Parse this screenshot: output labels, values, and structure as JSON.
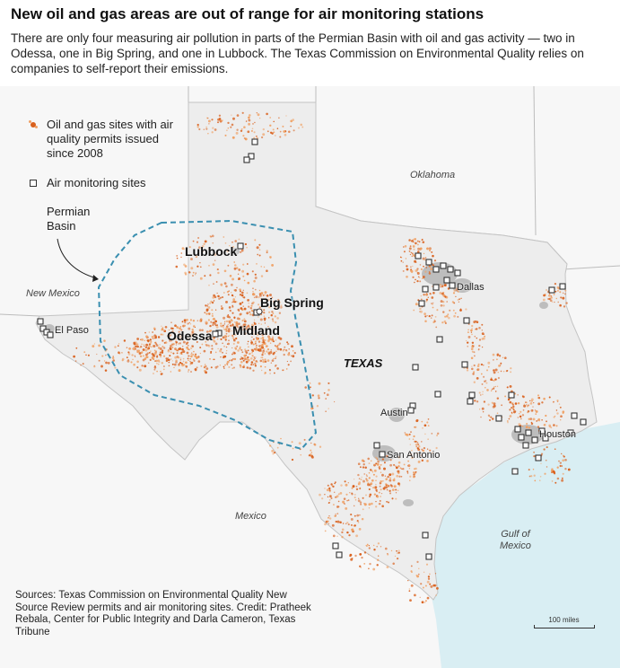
{
  "headline": "New oil and gas areas are out of range for air monitoring stations",
  "dek": "There are only four measuring air pollution in parts of the Permian Basin with oil and gas activity — two in Odessa, one in Big Spring, and one in Lubbock. The Texas Commission on Environmental Quality relies on companies to self-report their emissions.",
  "legend": {
    "oil_gas": "Oil and gas sites with air quality permits issued since 2008",
    "monitor": "Air monitoring sites"
  },
  "annotation": "Permian Basin",
  "cities": {
    "lubbock": "Lubbock",
    "big_spring": "Big Spring",
    "odessa": "Odessa",
    "midland": "Midland",
    "el_paso": "El Paso",
    "austin": "Austin",
    "san_antonio": "San Antonio",
    "houston": "Houston",
    "dallas": "Dallas"
  },
  "regions": {
    "new_mexico": "New Mexico",
    "oklahoma": "Oklahoma",
    "mexico": "Mexico",
    "texas": "TEXAS",
    "gulf_line1": "Gulf of",
    "gulf_line2": "Mexico"
  },
  "sources": "Sources: Texas Commission on Environmental Quality New Source Review permits and air monitoring sites. Credit: Pratheek Rebala, Center for Public Integrity and Darla Cameron, Texas Tribune",
  "scale": "100 miles",
  "colors": {
    "oil_gas": "#d9601c",
    "oil_gas_light": "#f0a063",
    "land": "#ededed",
    "other_land": "#f7f7f7",
    "water": "#d9eef3",
    "urban": "#bdbdbd",
    "permian_outline": "#3a8fb0",
    "monitor": "#333333"
  }
}
